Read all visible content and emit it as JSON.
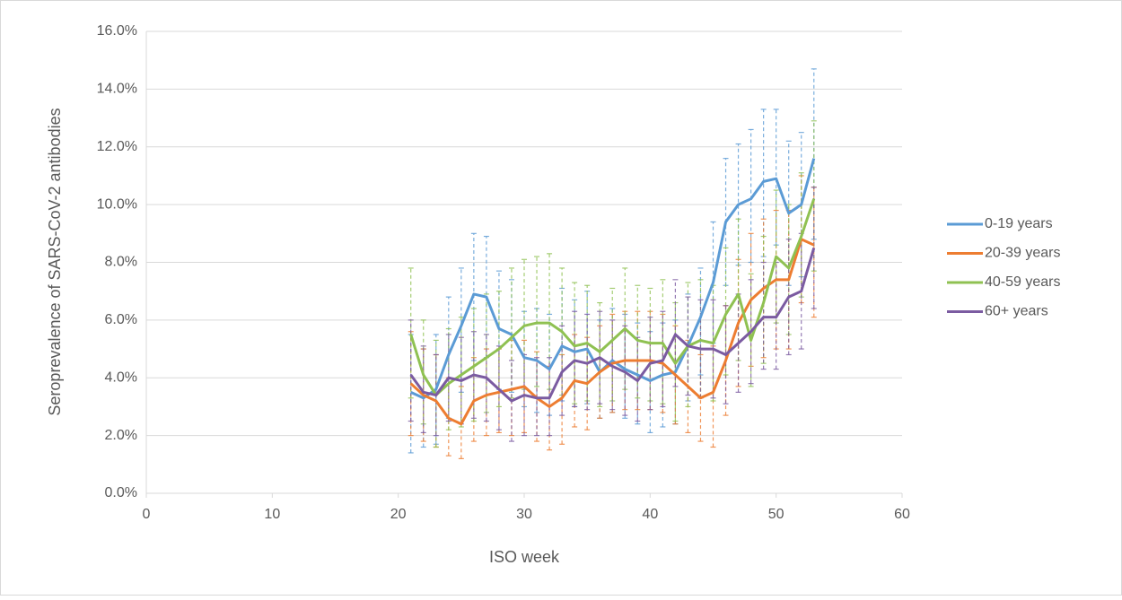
{
  "chart_data": {
    "type": "line",
    "xlabel": "ISO week",
    "ylabel": "Seroprevalence of SARS-CoV-2 antibodies",
    "x": [
      21,
      22,
      23,
      24,
      25,
      26,
      27,
      28,
      29,
      30,
      31,
      32,
      33,
      34,
      35,
      36,
      37,
      38,
      39,
      40,
      41,
      42,
      43,
      44,
      45,
      46,
      47,
      48,
      49,
      50,
      51,
      52,
      53
    ],
    "xlim": [
      0,
      60
    ],
    "xticks": [
      0,
      10,
      20,
      30,
      40,
      50,
      60
    ],
    "ylim": [
      0,
      16
    ],
    "yticks": [
      {
        "value": 0,
        "label": "0.0%"
      },
      {
        "value": 2,
        "label": "2.0%"
      },
      {
        "value": 4,
        "label": "4.0%"
      },
      {
        "value": 6,
        "label": "6.0%"
      },
      {
        "value": 8,
        "label": "8.0%"
      },
      {
        "value": 10,
        "label": "10.0%"
      },
      {
        "value": 12,
        "label": "12.0%"
      },
      {
        "value": 14,
        "label": "14.0%"
      },
      {
        "value": 16,
        "label": "16.0%"
      }
    ],
    "grid": true,
    "legend": "right",
    "series": [
      {
        "name": "0-19 years",
        "color": "#5b9bd5",
        "values": [
          3.5,
          3.3,
          3.6,
          4.8,
          5.8,
          6.9,
          6.8,
          5.7,
          5.5,
          4.7,
          4.6,
          4.3,
          5.1,
          4.9,
          5.0,
          4.2,
          4.6,
          4.3,
          4.1,
          3.9,
          4.1,
          4.2,
          5.1,
          6.1,
          7.3,
          9.4,
          10.0,
          10.2,
          10.8,
          10.9,
          9.7,
          10.0,
          11.6
        ],
        "upper": [
          5.5,
          5.0,
          5.5,
          6.8,
          7.8,
          9.0,
          8.9,
          7.7,
          7.4,
          6.3,
          6.4,
          6.2,
          7.1,
          6.7,
          7.0,
          6.0,
          6.4,
          6.2,
          5.9,
          5.6,
          5.9,
          6.0,
          6.9,
          7.8,
          9.4,
          11.6,
          12.1,
          12.6,
          13.3,
          13.3,
          12.2,
          12.5,
          14.7
        ],
        "lower": [
          1.4,
          1.6,
          1.7,
          2.6,
          3.5,
          4.6,
          4.7,
          3.6,
          3.5,
          3.0,
          2.8,
          2.7,
          3.2,
          3.0,
          3.1,
          2.6,
          2.8,
          2.6,
          2.4,
          2.1,
          2.3,
          2.4,
          3.2,
          4.1,
          5.2,
          7.2,
          7.9,
          8.0,
          8.2,
          8.6,
          7.2,
          7.5,
          8.8
        ]
      },
      {
        "name": "20-39 years",
        "color": "#ed7d31",
        "values": [
          3.8,
          3.4,
          3.2,
          2.6,
          2.4,
          3.2,
          3.4,
          3.5,
          3.6,
          3.7,
          3.3,
          3.0,
          3.3,
          3.9,
          3.8,
          4.2,
          4.5,
          4.6,
          4.6,
          4.6,
          4.5,
          4.1,
          3.7,
          3.3,
          3.5,
          4.6,
          5.9,
          6.7,
          7.1,
          7.4,
          7.4,
          8.8,
          8.6
        ],
        "upper": [
          5.6,
          5.0,
          4.8,
          4.0,
          3.7,
          4.7,
          5.0,
          5.0,
          5.3,
          5.3,
          4.9,
          4.4,
          4.8,
          5.5,
          5.4,
          5.8,
          6.2,
          6.3,
          6.3,
          6.3,
          6.2,
          5.8,
          5.3,
          4.8,
          5.1,
          6.5,
          8.1,
          9.0,
          9.5,
          9.8,
          9.8,
          11.0,
          10.6
        ],
        "lower": [
          2.0,
          1.8,
          1.6,
          1.3,
          1.2,
          1.8,
          2.0,
          2.1,
          2.0,
          2.1,
          1.8,
          1.5,
          1.7,
          2.3,
          2.2,
          2.6,
          2.8,
          2.9,
          2.9,
          2.9,
          2.8,
          2.4,
          2.1,
          1.8,
          1.6,
          2.7,
          3.7,
          4.4,
          4.7,
          5.0,
          5.0,
          6.6,
          6.1
        ]
      },
      {
        "name": "40-59 years",
        "color": "#8fc152",
        "values": [
          5.5,
          4.1,
          3.4,
          3.8,
          4.1,
          4.4,
          4.7,
          5.0,
          5.4,
          5.8,
          5.9,
          5.9,
          5.6,
          5.1,
          5.2,
          4.9,
          5.3,
          5.7,
          5.3,
          5.2,
          5.2,
          4.5,
          5.1,
          5.3,
          5.2,
          6.2,
          6.9,
          5.3,
          6.6,
          8.2,
          7.8,
          8.9,
          10.2
        ],
        "upper": [
          7.8,
          6.0,
          5.3,
          5.7,
          6.1,
          6.4,
          6.9,
          7.0,
          7.8,
          8.1,
          8.2,
          8.3,
          7.8,
          7.3,
          7.2,
          6.6,
          7.1,
          7.8,
          7.2,
          7.1,
          7.4,
          6.6,
          7.3,
          7.4,
          7.2,
          8.5,
          9.5,
          7.6,
          8.9,
          10.5,
          10.0,
          11.1,
          12.9
        ],
        "lower": [
          3.3,
          2.4,
          1.6,
          2.2,
          2.3,
          2.5,
          2.8,
          3.0,
          3.3,
          3.6,
          3.7,
          3.6,
          3.4,
          3.1,
          3.2,
          3.0,
          3.2,
          3.6,
          3.3,
          3.2,
          3.1,
          2.5,
          3.0,
          3.3,
          3.2,
          4.1,
          4.6,
          3.7,
          4.5,
          5.9,
          5.5,
          6.8,
          7.7
        ]
      },
      {
        "name": "60+ years",
        "color": "#7b5ba1",
        "values": [
          4.1,
          3.5,
          3.4,
          4.0,
          3.9,
          4.1,
          4.0,
          3.6,
          3.2,
          3.4,
          3.3,
          3.3,
          4.2,
          4.6,
          4.5,
          4.7,
          4.4,
          4.2,
          3.9,
          4.5,
          4.6,
          5.5,
          5.1,
          5.0,
          5.0,
          4.8,
          5.2,
          5.6,
          6.1,
          6.1,
          6.8,
          7.0,
          8.5
        ],
        "upper": [
          6.0,
          5.1,
          4.8,
          5.5,
          5.4,
          5.6,
          5.5,
          5.1,
          4.6,
          4.8,
          4.7,
          4.7,
          5.8,
          6.3,
          6.2,
          6.3,
          6.0,
          5.8,
          5.4,
          6.1,
          6.3,
          7.4,
          6.8,
          6.7,
          6.7,
          6.5,
          6.9,
          7.4,
          8.0,
          8.0,
          8.8,
          9.0,
          10.6
        ],
        "lower": [
          2.5,
          2.1,
          2.0,
          2.5,
          2.4,
          2.6,
          2.5,
          2.2,
          1.8,
          2.0,
          2.0,
          2.0,
          2.7,
          3.0,
          2.9,
          3.1,
          2.9,
          2.7,
          2.5,
          2.9,
          3.0,
          3.7,
          3.4,
          3.3,
          3.3,
          3.1,
          3.5,
          3.8,
          4.3,
          4.3,
          4.8,
          5.0,
          6.4
        ]
      }
    ]
  }
}
